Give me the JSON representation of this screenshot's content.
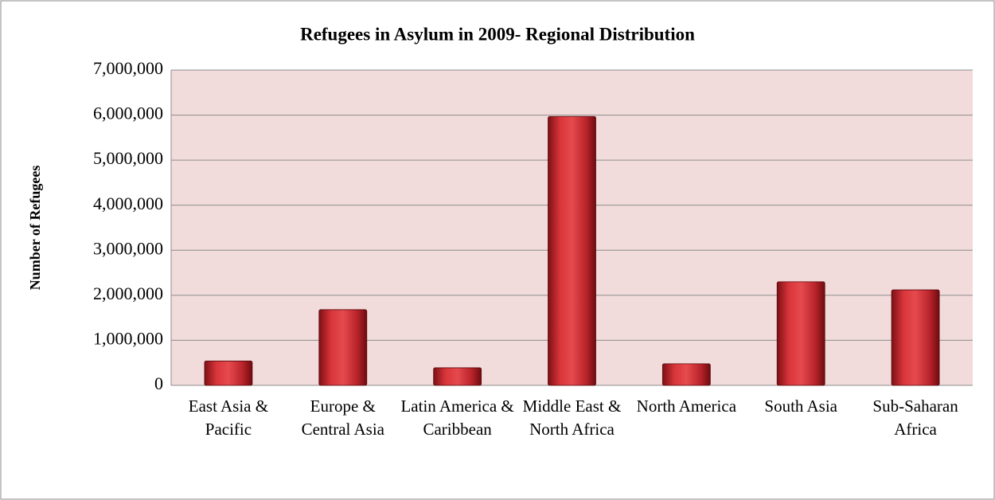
{
  "chart_data": {
    "type": "bar",
    "title": "Refugees in Asylum in 2009- Regional Distribution",
    "y_label": "Number of Refugees",
    "categories": [
      "East Asia & Pacific",
      "Europe & Central Asia",
      "Latin America & Caribbean",
      "Middle East & North Africa",
      "North America",
      "South Asia",
      "Sub-Saharan Africa"
    ],
    "values": [
      540000,
      1680000,
      390000,
      5970000,
      480000,
      2300000,
      2120000
    ],
    "color": "#c0262c",
    "ylim": [
      0,
      7000000
    ],
    "yticks": [
      0,
      {
        "value": 1000000,
        "label": "1,000,000"
      },
      {
        "value": 2000000,
        "label": "2,000,000"
      },
      {
        "value": 3000000,
        "label": "3,000,000"
      },
      {
        "value": 4000000,
        "label": "4,000,000"
      },
      {
        "value": 5000000,
        "label": "5,000,000"
      },
      {
        "value": 6000000,
        "label": "6,000,000"
      },
      {
        "value": 7000000,
        "label": "7,000,000"
      }
    ],
    "grid": true
  }
}
